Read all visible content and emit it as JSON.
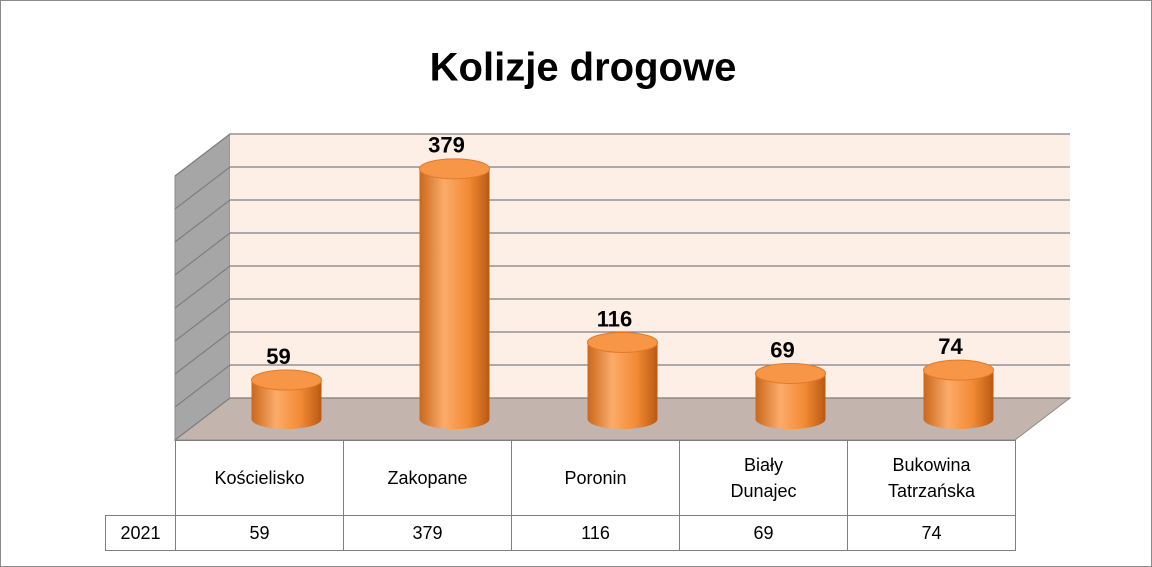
{
  "chart_data": {
    "type": "bar3d",
    "title": "Kolizje drogowe",
    "categories": [
      "Kościelisko",
      "Zakopane",
      "Poronin",
      "Biały Dunajec",
      "Bukowina Tatrzańska"
    ],
    "series": [
      {
        "name": "2021",
        "color": "#f79646",
        "values": [
          59,
          379,
          116,
          69,
          74
        ]
      }
    ],
    "ylim": [
      0,
      400
    ],
    "yticks": [
      0,
      50,
      100,
      150,
      200,
      250,
      300,
      350,
      400
    ],
    "grid": true,
    "data_table": true
  }
}
